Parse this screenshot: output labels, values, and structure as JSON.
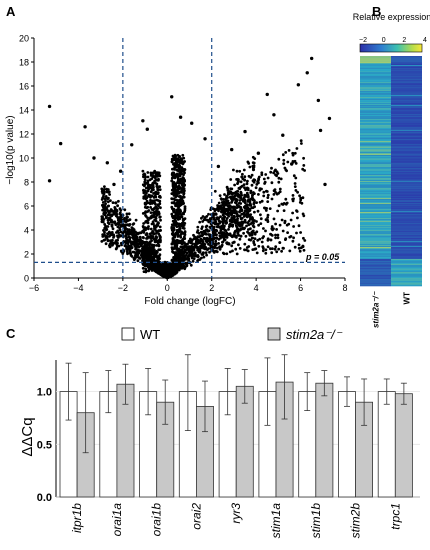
{
  "panels": {
    "a": {
      "label": "A",
      "chart_data": {
        "type": "scatter",
        "xlabel": "Fold change (logFC)",
        "ylabel": "−log10(p value)",
        "xlim": [
          -6,
          8
        ],
        "ylim": [
          0,
          20
        ],
        "xticks": [
          "−6",
          "−4",
          "−2",
          "0",
          "2",
          "4",
          "6",
          "8"
        ],
        "yticks": [
          "0",
          "2",
          "4",
          "6",
          "8",
          "10",
          "12",
          "14",
          "16",
          "18",
          "20"
        ],
        "thresholds": {
          "fc_low": -2,
          "fc_high": 2,
          "p_line_y": 1.3
        },
        "threshold_label": "p = 0.05",
        "outliers": [
          {
            "x": -5.3,
            "y": 14.3
          },
          {
            "x": -5.3,
            "y": 8.1
          },
          {
            "x": -4.8,
            "y": 11.2
          },
          {
            "x": -3.7,
            "y": 12.6
          },
          {
            "x": -3.3,
            "y": 10.0
          },
          {
            "x": -2.7,
            "y": 9.6
          },
          {
            "x": -2.4,
            "y": 7.8
          },
          {
            "x": -2.1,
            "y": 8.9
          },
          {
            "x": -1.6,
            "y": 11.1
          },
          {
            "x": -1.1,
            "y": 13.1
          },
          {
            "x": -0.9,
            "y": 12.4
          },
          {
            "x": 0.2,
            "y": 15.1
          },
          {
            "x": 0.6,
            "y": 13.4
          },
          {
            "x": 1.1,
            "y": 12.9
          },
          {
            "x": 1.7,
            "y": 11.6
          },
          {
            "x": 2.3,
            "y": 9.3
          },
          {
            "x": 2.9,
            "y": 10.7
          },
          {
            "x": 3.5,
            "y": 12.2
          },
          {
            "x": 4.1,
            "y": 10.4
          },
          {
            "x": 4.5,
            "y": 15.3
          },
          {
            "x": 4.8,
            "y": 13.6
          },
          {
            "x": 5.2,
            "y": 11.9
          },
          {
            "x": 5.6,
            "y": 9.5
          },
          {
            "x": 5.9,
            "y": 16.1
          },
          {
            "x": 6.3,
            "y": 17.1
          },
          {
            "x": 6.5,
            "y": 18.3
          },
          {
            "x": 6.8,
            "y": 14.8
          },
          {
            "x": 6.9,
            "y": 12.3
          },
          {
            "x": 7.1,
            "y": 7.8
          },
          {
            "x": 7.3,
            "y": 13.3
          }
        ]
      }
    },
    "b": {
      "label": "B",
      "chart_data": {
        "type": "heatmap",
        "title": "Relative expression",
        "colorbar_ticks": [
          "−2",
          "0",
          "2",
          "4"
        ],
        "colorbar_range": [
          -2,
          4
        ],
        "columns": [
          "stim2a⁻/⁻",
          "WT"
        ],
        "colors": {
          "low": "#2b2fa8",
          "mid": "#2aa7c6",
          "high": "#f2e63a"
        }
      }
    },
    "c": {
      "label": "C",
      "chart_data": {
        "type": "bar",
        "ylabel": "ΔΔCq",
        "ylim": [
          0,
          1.3
        ],
        "yticks": [
          "0.0",
          "0.5",
          "1.0"
        ],
        "legend_position": "top",
        "categories": [
          "itpr1b",
          "orai1a",
          "orai1b",
          "orai2",
          "ryr3",
          "stim1a",
          "stim1b",
          "stim2b",
          "trpc1"
        ],
        "series": [
          {
            "name": "WT",
            "color": "#ffffff",
            "values": [
              1.0,
              1.0,
              1.0,
              1.0,
              1.0,
              1.0,
              1.0,
              1.0,
              1.0
            ],
            "err": [
              0.27,
              0.2,
              0.22,
              0.37,
              0.22,
              0.32,
              0.18,
              0.14,
              0.12
            ]
          },
          {
            "name": "stim2a⁻/⁻",
            "color": "#c8c8c8",
            "values": [
              0.8,
              1.07,
              0.9,
              0.86,
              1.05,
              1.09,
              1.08,
              0.9,
              0.98
            ],
            "err": [
              0.38,
              0.19,
              0.21,
              0.24,
              0.16,
              0.35,
              0.12,
              0.22,
              0.1
            ]
          }
        ]
      }
    }
  }
}
